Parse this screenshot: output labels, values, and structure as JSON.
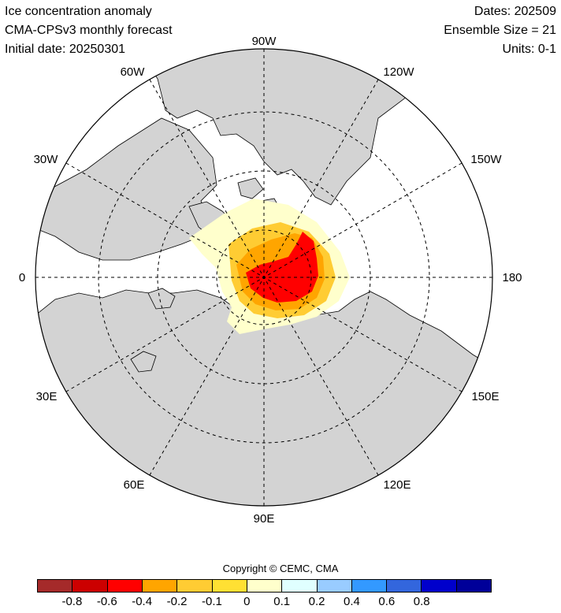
{
  "header": {
    "title": "Ice concentration anomaly",
    "model": "CMA-CPSv3 monthly forecast",
    "initial_date": "Initial date: 20250301",
    "dates": "Dates: 202509",
    "ensemble": "Ensemble Size = 21",
    "units": "Units: 0-1"
  },
  "map": {
    "projection": "north polar stereographic",
    "longitude_labels": {
      "top": "90W",
      "upper_left": "60W",
      "upper_right": "120W",
      "left_upper": "30W",
      "right_upper": "150W",
      "left": "0",
      "right": "180",
      "left_lower": "30E",
      "right_lower": "150E",
      "lower_left": "60E",
      "lower_right": "120E",
      "bottom": "90E"
    },
    "colors": {
      "land": "#d3d3d3",
      "ocean": "#ffffff",
      "grid": "#000000"
    }
  },
  "copyright": "Copyright © CEMC, CMA",
  "colorbar": {
    "colors": [
      "#a52a2a",
      "#cc0000",
      "#ff0000",
      "#ffa500",
      "#ffcc33",
      "#ffe033",
      "#ffffcc",
      "#e0ffff",
      "#99ccff",
      "#3399ff",
      "#3366dd",
      "#0000cc",
      "#000099"
    ],
    "tick_labels": [
      "-0.8",
      "-0.6",
      "-0.4",
      "-0.2",
      "-0.1",
      "0",
      "0.1",
      "0.2",
      "0.4",
      "0.6",
      "0.8"
    ]
  }
}
